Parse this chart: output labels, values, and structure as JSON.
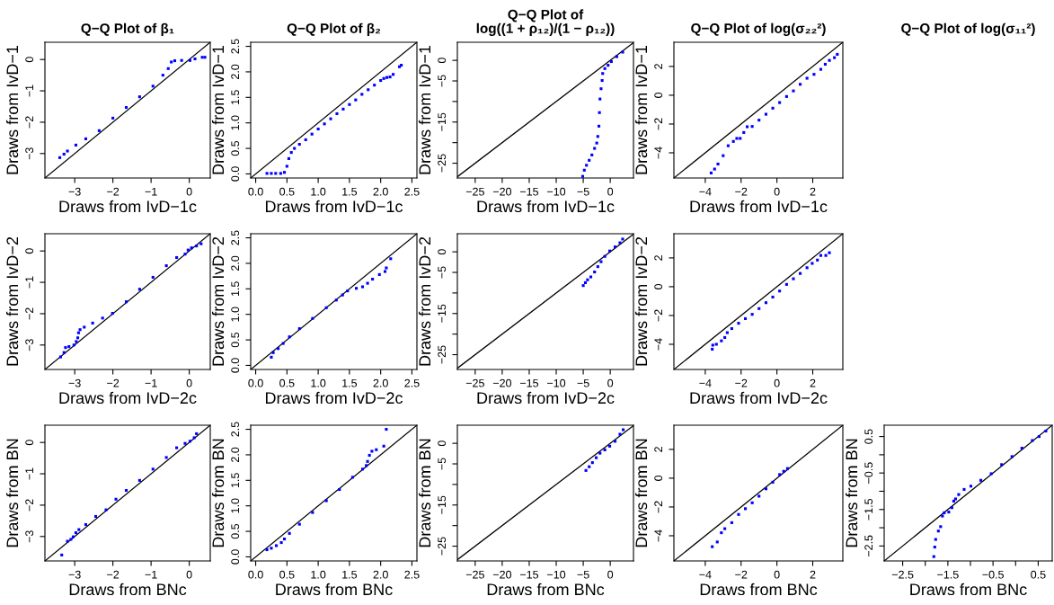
{
  "chart_data": [
    {
      "type": "scatter",
      "title": "Q−Q Plot of β₁",
      "xlabel": "Draws from IvD−1c",
      "ylabel": "Draws from IvD−1",
      "xlim": [
        -3.78,
        0.55
      ],
      "ylim": [
        -3.78,
        0.55
      ],
      "xticks": [
        -3,
        -2,
        -1,
        0
      ],
      "yticks": [
        -3,
        -2,
        -1,
        0
      ],
      "series": [
        {
          "color": "#0000ff",
          "marker": "square",
          "x": [
            -3.39,
            -3.28,
            -3.19,
            -2.97,
            -2.71,
            -2.36,
            -2.0,
            -1.65,
            -1.3,
            -0.95,
            -0.69,
            -0.55,
            -0.47,
            -0.38,
            -0.2,
            0.02,
            0.15,
            0.34,
            0.41
          ],
          "values": [
            -3.13,
            -3.02,
            -2.92,
            -2.73,
            -2.53,
            -2.27,
            -1.87,
            -1.53,
            -1.19,
            -0.85,
            -0.5,
            -0.29,
            -0.08,
            -0.04,
            -0.03,
            -0.03,
            0.02,
            0.07,
            0.07
          ]
        },
        {
          "type": "line",
          "marker": "none",
          "color": "#000000",
          "x": [
            -3.78,
            0.55
          ],
          "values": [
            -3.78,
            0.55
          ]
        }
      ]
    },
    {
      "type": "scatter",
      "title": "Q−Q Plot of β₂",
      "xlabel": "Draws from IvD−1c",
      "ylabel": "Draws from IvD−1",
      "xlim": [
        -0.08,
        2.58
      ],
      "ylim": [
        -0.08,
        2.58
      ],
      "xticks": [
        {
          "value": 0,
          "label": "0.0"
        },
        0.5,
        {
          "value": 1,
          "label": "1.0"
        },
        1.5,
        {
          "value": 2,
          "label": "2.0"
        },
        2.5
      ],
      "yticks": [
        {
          "value": 0,
          "label": "0.0"
        },
        0.5,
        {
          "value": 1,
          "label": "1.0"
        },
        1.5,
        {
          "value": 2,
          "label": "2.0"
        },
        2.5
      ],
      "series": [
        {
          "color": "#0000ff",
          "marker": "square",
          "x": [
            0.18,
            0.25,
            0.32,
            0.4,
            0.46,
            0.5,
            0.53,
            0.57,
            0.62,
            0.7,
            0.8,
            0.9,
            1.0,
            1.1,
            1.2,
            1.3,
            1.4,
            1.5,
            1.6,
            1.7,
            1.8,
            1.9,
            2.0,
            2.05,
            2.1,
            2.15,
            2.2,
            2.3,
            2.33
          ],
          "values": [
            0.01,
            0.01,
            0.01,
            0.01,
            0.03,
            0.15,
            0.3,
            0.42,
            0.5,
            0.58,
            0.67,
            0.78,
            0.88,
            0.98,
            1.08,
            1.18,
            1.27,
            1.36,
            1.45,
            1.56,
            1.65,
            1.74,
            1.83,
            1.87,
            1.89,
            1.9,
            1.95,
            2.1,
            2.13
          ]
        },
        {
          "type": "line",
          "marker": "none",
          "color": "#000000",
          "x": [
            -0.08,
            2.58
          ],
          "values": [
            -0.08,
            2.58
          ]
        }
      ]
    },
    {
      "type": "scatter",
      "title": "Q−Q Plot of\nlog((1 + ρ₁₂)/(1 − ρ₁₂))",
      "xlabel": "Draws from IvD−1c",
      "ylabel": "Draws from IvD−1",
      "xlim": [
        -28.3,
        4.3
      ],
      "ylim": [
        -28.6,
        4.4
      ],
      "xticks": [
        -25,
        -20,
        -15,
        -10,
        -5,
        0
      ],
      "yticks": [
        -25,
        {
          "value": -20,
          "label": null
        },
        -15,
        {
          "value": -10,
          "label": null
        },
        -5,
        0
      ],
      "series": [
        {
          "color": "#0000ff",
          "marker": "square",
          "x": [
            -5.1,
            -4.8,
            -4.4,
            -3.9,
            -3.4,
            -2.9,
            -2.5,
            -2.3,
            -2.1,
            -2.0,
            -1.9,
            -1.7,
            -1.5,
            -1.4,
            -1.0,
            -0.4,
            0.2,
            1.2,
            2.3
          ],
          "values": [
            -28.2,
            -26.7,
            -25.5,
            -24.3,
            -23.0,
            -21.4,
            -20.1,
            -18.5,
            -16.0,
            -12.7,
            -9.4,
            -6.9,
            -4.9,
            -3.2,
            -2.0,
            -1.2,
            -0.3,
            0.9,
            2.0
          ]
        },
        {
          "type": "line",
          "marker": "none",
          "color": "#000000",
          "x": [
            -28.3,
            4.3
          ],
          "values": [
            -28.3,
            4.3
          ]
        }
      ]
    },
    {
      "type": "scatter",
      "title": "Q−Q Plot of log(σ₂₂²)",
      "xlabel": "Draws from IvD−1c",
      "ylabel": "Draws from IvD−1",
      "xlim": [
        -5.75,
        3.68
      ],
      "ylim": [
        -5.75,
        3.68
      ],
      "xticks": [
        -4,
        -2,
        0,
        2
      ],
      "yticks": [
        -4,
        -2,
        0,
        2
      ],
      "series": [
        {
          "color": "#0000ff",
          "marker": "square",
          "x": [
            -3.67,
            -3.48,
            -3.29,
            -3.0,
            -2.72,
            -2.43,
            -2.24,
            -2.05,
            -1.85,
            -1.66,
            -1.38,
            -1.0,
            -0.61,
            -0.23,
            0.15,
            0.54,
            0.92,
            1.3,
            1.68,
            2.07,
            2.45,
            2.7,
            2.93,
            3.21,
            3.37
          ],
          "values": [
            -5.4,
            -5.13,
            -4.78,
            -4.2,
            -3.51,
            -3.21,
            -3.0,
            -3.0,
            -2.59,
            -2.19,
            -2.17,
            -1.73,
            -1.32,
            -0.9,
            -0.51,
            -0.09,
            0.3,
            0.76,
            1.18,
            1.45,
            1.8,
            2.15,
            2.42,
            2.61,
            2.84
          ]
        },
        {
          "type": "line",
          "marker": "none",
          "color": "#000000",
          "x": [
            -5.75,
            3.68
          ],
          "values": [
            -5.75,
            3.68
          ]
        }
      ]
    },
    {
      "type": "scatter",
      "xlabel": "Draws from IvD−2c",
      "ylabel": "Draws from IvD−2",
      "xlim": [
        -3.78,
        0.55
      ],
      "ylim": [
        -3.78,
        0.55
      ],
      "xticks": [
        -3,
        -2,
        -1,
        0
      ],
      "yticks": [
        -3,
        -2,
        -1,
        0
      ],
      "series": [
        {
          "color": "#0000ff",
          "marker": "square",
          "x": [
            -3.37,
            -3.28,
            -3.24,
            -3.15,
            -3.02,
            -2.96,
            -2.92,
            -2.9,
            -2.86,
            -2.75,
            -2.53,
            -2.27,
            -2.01,
            -1.65,
            -1.3,
            -0.95,
            -0.6,
            -0.33,
            -0.11,
            -0.03,
            0.06,
            0.19,
            0.31
          ],
          "values": [
            -3.38,
            -3.24,
            -3.08,
            -3.05,
            -3.0,
            -2.89,
            -2.77,
            -2.61,
            -2.51,
            -2.43,
            -2.3,
            -2.14,
            -1.99,
            -1.62,
            -1.22,
            -0.84,
            -0.47,
            -0.21,
            -0.1,
            0.03,
            0.1,
            0.16,
            0.23
          ]
        },
        {
          "type": "line",
          "marker": "none",
          "color": "#000000",
          "x": [
            -3.78,
            0.55
          ],
          "values": [
            -3.78,
            0.55
          ]
        }
      ]
    },
    {
      "type": "scatter",
      "xlabel": "Draws from IvD−2c",
      "ylabel": "Draws from IvD−2",
      "xlim": [
        -0.08,
        2.58
      ],
      "ylim": [
        -0.08,
        2.58
      ],
      "xticks": [
        {
          "value": 0,
          "label": "0.0"
        },
        0.5,
        {
          "value": 1,
          "label": "1.0"
        },
        1.5,
        {
          "value": 2,
          "label": "2.0"
        },
        2.5
      ],
      "yticks": [
        {
          "value": 0,
          "label": "0.0"
        },
        0.5,
        {
          "value": 1,
          "label": "1.0"
        },
        1.5,
        {
          "value": 2,
          "label": "2.0"
        },
        2.5
      ],
      "series": [
        {
          "color": "#0000ff",
          "marker": "square",
          "x": [
            0.25,
            0.28,
            0.36,
            0.44,
            0.54,
            0.7,
            0.91,
            1.13,
            1.29,
            1.39,
            1.47,
            1.61,
            1.71,
            1.79,
            1.87,
            1.98,
            2.07,
            2.09,
            2.16
          ],
          "values": [
            0.16,
            0.25,
            0.33,
            0.43,
            0.56,
            0.72,
            0.92,
            1.13,
            1.28,
            1.38,
            1.46,
            1.51,
            1.54,
            1.61,
            1.69,
            1.78,
            1.84,
            1.91,
            2.09
          ]
        },
        {
          "type": "line",
          "marker": "none",
          "color": "#000000",
          "x": [
            -0.08,
            2.58
          ],
          "values": [
            -0.08,
            2.58
          ]
        }
      ]
    },
    {
      "type": "scatter",
      "xlabel": "Draws from IvD−2c",
      "ylabel": "Draws from IvD−2",
      "xlim": [
        -28.3,
        4.3
      ],
      "ylim": [
        -28.6,
        4.4
      ],
      "xticks": [
        -25,
        -20,
        -15,
        -10,
        -5,
        0
      ],
      "yticks": [
        -25,
        {
          "value": -20,
          "label": null
        },
        -15,
        {
          "value": -10,
          "label": null
        },
        -5,
        0
      ],
      "series": [
        {
          "color": "#0000ff",
          "marker": "square",
          "x": [
            -5.0,
            -4.6,
            -4.2,
            -3.6,
            -2.9,
            -2.3,
            -1.7,
            -1.0,
            -0.1,
            0.9,
            1.8,
            2.3
          ],
          "values": [
            -8.2,
            -7.5,
            -6.8,
            -6.1,
            -4.9,
            -3.6,
            -2.4,
            -1.1,
            0.2,
            1.2,
            2.2,
            3.1
          ]
        },
        {
          "type": "line",
          "marker": "none",
          "color": "#000000",
          "x": [
            -28.3,
            4.3
          ],
          "values": [
            -28.3,
            4.3
          ]
        }
      ]
    },
    {
      "type": "scatter",
      "xlabel": "Draws from IvD−2c",
      "ylabel": "Draws from IvD−2",
      "xlim": [
        -5.75,
        3.68
      ],
      "ylim": [
        -5.75,
        3.68
      ],
      "xticks": [
        -4,
        -2,
        0,
        2
      ],
      "yticks": [
        -4,
        -2,
        0,
        2
      ],
      "series": [
        {
          "color": "#0000ff",
          "marker": "square",
          "x": [
            -3.61,
            -3.58,
            -3.38,
            -3.1,
            -2.91,
            -2.77,
            -2.52,
            -2.14,
            -1.76,
            -1.38,
            -1.0,
            -0.61,
            -0.23,
            0.15,
            0.54,
            0.92,
            1.3,
            1.68,
            1.97,
            2.26,
            2.45,
            2.73,
            2.93
          ],
          "values": [
            -4.34,
            -4.06,
            -4.0,
            -3.76,
            -3.53,
            -3.19,
            -2.91,
            -2.54,
            -2.22,
            -1.92,
            -1.52,
            -1.11,
            -0.72,
            -0.3,
            0.16,
            0.55,
            0.92,
            1.32,
            1.62,
            1.85,
            2.17,
            2.17,
            2.36
          ]
        },
        {
          "type": "line",
          "marker": "none",
          "color": "#000000",
          "x": [
            -5.75,
            3.68
          ],
          "values": [
            -5.75,
            3.68
          ]
        }
      ]
    },
    {
      "type": "scatter",
      "xlabel": "Draws from BNc",
      "ylabel": "Draws from BN",
      "xlim": [
        -3.78,
        0.55
      ],
      "ylim": [
        -3.78,
        0.55
      ],
      "xticks": [
        -3,
        -2,
        -1,
        0
      ],
      "yticks": [
        -3,
        -2,
        -1,
        0
      ],
      "series": [
        {
          "color": "#0000ff",
          "marker": "square",
          "x": [
            -3.34,
            -3.19,
            -3.1,
            -3.04,
            -2.97,
            -2.89,
            -2.71,
            -2.45,
            -2.18,
            -1.92,
            -1.65,
            -1.3,
            -0.95,
            -0.6,
            -0.33,
            -0.11,
            0.02,
            0.13,
            0.19
          ],
          "values": [
            -3.59,
            -3.15,
            -3.09,
            -3.01,
            -2.88,
            -2.78,
            -2.62,
            -2.36,
            -2.15,
            -1.81,
            -1.53,
            -1.21,
            -0.85,
            -0.48,
            -0.17,
            -0.03,
            0.04,
            0.15,
            0.28
          ]
        },
        {
          "type": "line",
          "marker": "none",
          "color": "#000000",
          "x": [
            -3.78,
            0.55
          ],
          "values": [
            -3.78,
            0.55
          ]
        }
      ]
    },
    {
      "type": "scatter",
      "xlabel": "Draws from BNc",
      "ylabel": "Draws from BN",
      "xlim": [
        -0.08,
        2.58
      ],
      "ylim": [
        -0.08,
        2.58
      ],
      "xticks": [
        {
          "value": 0,
          "label": "0.0"
        },
        0.5,
        {
          "value": 1,
          "label": "1.0"
        },
        1.5,
        {
          "value": 2,
          "label": "2.0"
        },
        2.5
      ],
      "yticks": [
        {
          "value": 0,
          "label": "0.0"
        },
        0.5,
        {
          "value": 1,
          "label": "1.0"
        },
        1.5,
        {
          "value": 2,
          "label": "2.0"
        },
        2.5
      ],
      "series": [
        {
          "color": "#0000ff",
          "marker": "square",
          "x": [
            0.18,
            0.25,
            0.33,
            0.41,
            0.46,
            0.54,
            0.7,
            0.91,
            1.13,
            1.34,
            1.55,
            1.71,
            1.77,
            1.79,
            1.82,
            1.86,
            1.93,
            2.05,
            2.09
          ],
          "values": [
            0.14,
            0.17,
            0.22,
            0.28,
            0.35,
            0.46,
            0.64,
            0.87,
            1.1,
            1.32,
            1.56,
            1.72,
            1.79,
            1.87,
            1.99,
            2.07,
            2.1,
            2.17,
            2.5
          ]
        },
        {
          "type": "line",
          "marker": "none",
          "color": "#000000",
          "x": [
            -0.08,
            2.58
          ],
          "values": [
            -0.08,
            2.58
          ]
        }
      ]
    },
    {
      "type": "scatter",
      "xlabel": "Draws from BNc",
      "ylabel": "Draws from BN",
      "xlim": [
        -28.3,
        4.3
      ],
      "ylim": [
        -28.6,
        4.4
      ],
      "xticks": [
        -25,
        -20,
        -15,
        -10,
        -5,
        0
      ],
      "yticks": [
        -25,
        {
          "value": -20,
          "label": null
        },
        -15,
        {
          "value": -10,
          "label": null
        },
        -5,
        0
      ],
      "series": [
        {
          "color": "#0000ff",
          "marker": "square",
          "x": [
            -4.5,
            -3.9,
            -3.3,
            -2.6,
            -1.9,
            -1.0,
            -0.1,
            0.9,
            1.8,
            2.4
          ],
          "values": [
            -6.6,
            -5.7,
            -4.7,
            -3.5,
            -2.4,
            -1.6,
            -0.7,
            0.5,
            2.2,
            3.3
          ]
        },
        {
          "type": "line",
          "marker": "none",
          "color": "#000000",
          "x": [
            -28.3,
            4.3
          ],
          "values": [
            -28.3,
            4.3
          ]
        }
      ]
    },
    {
      "type": "scatter",
      "xlabel": "Draws from BNc",
      "ylabel": "Draws from BN",
      "xlim": [
        -5.75,
        3.68
      ],
      "ylim": [
        -5.75,
        3.68
      ],
      "xticks": [
        -4,
        -2,
        0,
        2
      ],
      "yticks": [
        -4,
        -2,
        0,
        2
      ],
      "series": [
        {
          "color": "#0000ff",
          "marker": "square",
          "x": [
            -3.61,
            -3.33,
            -3.1,
            -2.91,
            -2.52,
            -2.14,
            -1.76,
            -1.38,
            -1.0,
            -0.61,
            -0.23,
            0.15,
            0.38,
            0.59
          ],
          "values": [
            -4.76,
            -4.43,
            -3.79,
            -3.51,
            -3.09,
            -2.52,
            -2.12,
            -1.71,
            -1.25,
            -0.74,
            -0.28,
            0.25,
            0.48,
            0.67
          ]
        },
        {
          "type": "line",
          "marker": "none",
          "color": "#000000",
          "x": [
            -5.75,
            3.68
          ],
          "values": [
            -5.75,
            3.68
          ]
        }
      ]
    },
    {
      "type": "scatter",
      "title": "Q−Q Plot of log(σ₁₁²)",
      "xlabel": "Draws from BNc",
      "ylabel": "Draws from BN",
      "xlim": [
        -2.91,
        0.81
      ],
      "ylim": [
        -2.91,
        0.81
      ],
      "xticks": [
        -2.5,
        {
          "value": -2,
          "label": null
        },
        -1.5,
        {
          "value": -1,
          "label": null
        },
        -0.5,
        {
          "value": 0,
          "label": null
        },
        0.5
      ],
      "yticks": [
        -2.5,
        {
          "value": -2,
          "label": null
        },
        -1.5,
        {
          "value": -1,
          "label": null
        },
        -0.5,
        {
          "value": 0,
          "label": null
        },
        0.5
      ],
      "series": [
        {
          "color": "#0000ff",
          "marker": "square",
          "x": [
            -1.81,
            -1.79,
            -1.77,
            -1.71,
            -1.66,
            -1.62,
            -1.58,
            -1.48,
            -1.41,
            -1.37,
            -1.33,
            -1.26,
            -1.14,
            -0.99,
            -0.77,
            -0.54,
            -0.31,
            -0.08,
            0.14,
            0.37,
            0.52,
            0.67
          ],
          "values": [
            -2.79,
            -2.53,
            -2.32,
            -2.09,
            -1.97,
            -1.68,
            -1.59,
            -1.57,
            -1.45,
            -1.27,
            -1.21,
            -1.09,
            -0.95,
            -0.86,
            -0.7,
            -0.52,
            -0.27,
            -0.05,
            0.18,
            0.39,
            0.5,
            0.65
          ]
        },
        {
          "type": "line",
          "marker": "none",
          "color": "#000000",
          "x": [
            -2.91,
            0.81
          ],
          "values": [
            -2.91,
            0.81
          ]
        }
      ]
    }
  ]
}
